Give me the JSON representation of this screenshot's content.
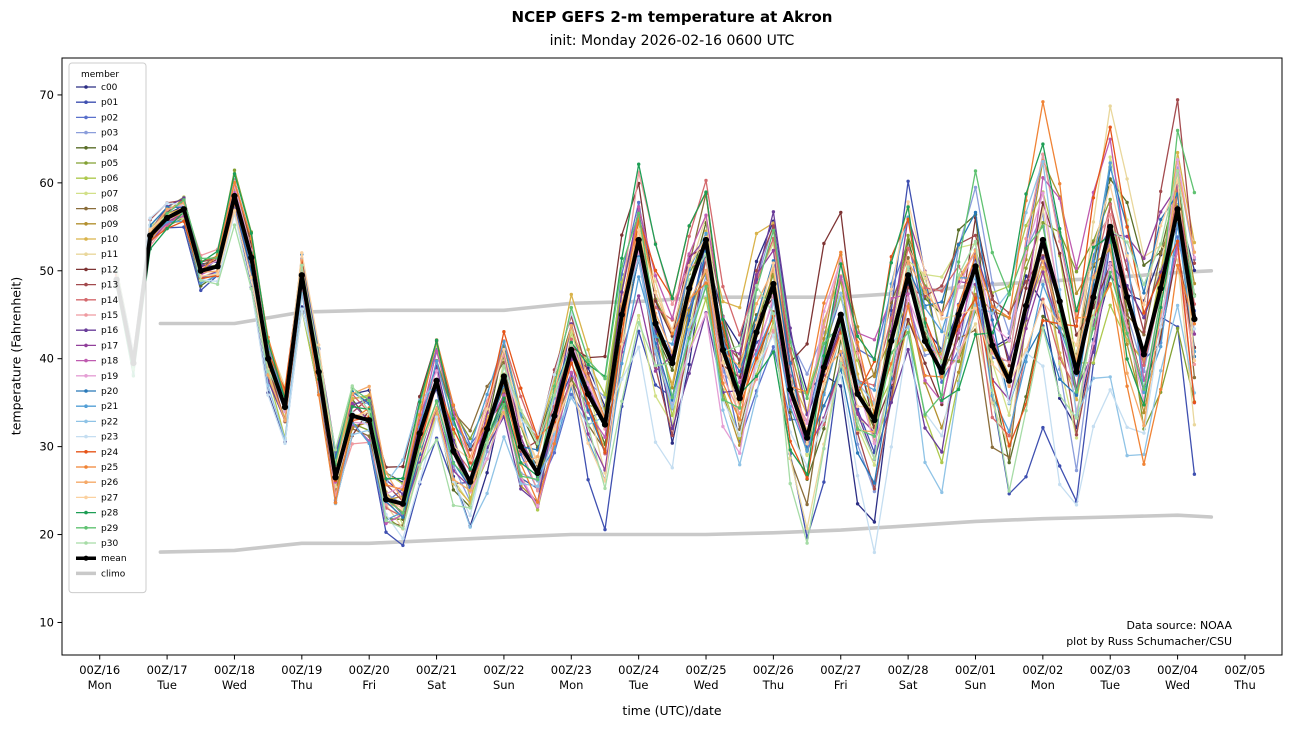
{
  "chart_data": {
    "type": "line",
    "title": "NCEP GEFS 2-m temperature at Akron",
    "subtitle": "init: Monday 2026-02-16 0600 UTC",
    "xlabel": "time (UTC)/date",
    "ylabel": "temperature (Fahrenheit)",
    "legend_title": "member",
    "legend_position": "upper left",
    "grid": false,
    "xlim": [
      15.44,
      33.55
    ],
    "ylim": [
      6.3,
      74.2
    ],
    "y_ticks": [
      10,
      20,
      30,
      40,
      50,
      60,
      70
    ],
    "x_ticks": [
      {
        "t": 16,
        "date": "00Z/16",
        "day": "Mon"
      },
      {
        "t": 17,
        "date": "00Z/17",
        "day": "Tue"
      },
      {
        "t": 18,
        "date": "00Z/18",
        "day": "Wed"
      },
      {
        "t": 19,
        "date": "00Z/19",
        "day": "Thu"
      },
      {
        "t": 20,
        "date": "00Z/20",
        "day": "Fri"
      },
      {
        "t": 21,
        "date": "00Z/21",
        "day": "Sat"
      },
      {
        "t": 22,
        "date": "00Z/22",
        "day": "Sun"
      },
      {
        "t": 23,
        "date": "00Z/23",
        "day": "Mon"
      },
      {
        "t": 24,
        "date": "00Z/24",
        "day": "Tue"
      },
      {
        "t": 25,
        "date": "00Z/25",
        "day": "Wed"
      },
      {
        "t": 26,
        "date": "00Z/26",
        "day": "Thu"
      },
      {
        "t": 27,
        "date": "00Z/27",
        "day": "Fri"
      },
      {
        "t": 28,
        "date": "00Z/28",
        "day": "Sat"
      },
      {
        "t": 29,
        "date": "00Z/01",
        "day": "Sun"
      },
      {
        "t": 30,
        "date": "00Z/02",
        "day": "Mon"
      },
      {
        "t": 31,
        "date": "00Z/03",
        "day": "Tue"
      },
      {
        "t": 32,
        "date": "00Z/04",
        "day": "Wed"
      },
      {
        "t": 33,
        "date": "00Z/05",
        "day": "Thu"
      }
    ],
    "x_start": 16.25,
    "x_step": 0.25,
    "mean": {
      "name": "mean",
      "color": "#000000",
      "values": [
        49,
        39.5,
        54,
        56,
        57,
        50,
        50.5,
        58.5,
        51.5,
        40,
        34.5,
        49.5,
        38.5,
        26.5,
        33.5,
        33,
        24,
        23.5,
        31.5,
        37.5,
        29.5,
        26,
        32,
        38,
        30,
        27,
        33.5,
        41,
        36,
        32.5,
        45,
        53.5,
        44,
        39.5,
        48,
        53.5,
        41,
        35.5,
        43,
        48.5,
        36.5,
        31,
        39,
        45,
        36,
        33,
        42,
        49.5,
        42,
        38.5,
        45,
        50.5,
        41.5,
        37.5,
        46,
        53.5,
        46.5,
        38.5,
        47,
        55,
        47,
        40.5,
        48,
        57,
        44.5
      ]
    },
    "climo": {
      "name": "climo",
      "color": "#c9c9c9",
      "upper": {
        "x": [
          16.9,
          18,
          19,
          20,
          22,
          23,
          24,
          25,
          26,
          27,
          28,
          29,
          30,
          31,
          32,
          32.5
        ],
        "y": [
          44,
          44,
          45.3,
          45.5,
          45.5,
          46.3,
          46.5,
          47,
          47,
          47,
          47.5,
          48.3,
          48.8,
          49.2,
          49.8,
          50
        ]
      },
      "lower": {
        "x": [
          16.9,
          18,
          19,
          20,
          22,
          23,
          24,
          25,
          26,
          27,
          28,
          29,
          30,
          31,
          32,
          32.5
        ],
        "y": [
          18,
          18.2,
          19,
          19,
          19.7,
          20,
          20,
          20,
          20.2,
          20.5,
          21,
          21.5,
          21.8,
          22,
          22.2,
          22
        ]
      }
    },
    "spread_model": {
      "base": 1.2,
      "rate": 0.78,
      "max": 13,
      "estimated": true
    },
    "members": [
      {
        "name": "c00",
        "color": "#2b2d84",
        "amp": 1.15,
        "bias": -2
      },
      {
        "name": "p01",
        "color": "#3e4fb0",
        "amp": 1.35,
        "bias": -5
      },
      {
        "name": "p02",
        "color": "#5a71cc",
        "amp": 1.0,
        "bias": 0
      },
      {
        "name": "p03",
        "color": "#8b9edb",
        "amp": 1.0,
        "bias": -1
      },
      {
        "name": "p04",
        "color": "#5a6e28",
        "amp": 1.0,
        "bias": 1
      },
      {
        "name": "p05",
        "color": "#82a033",
        "amp": 1.0,
        "bias": 2
      },
      {
        "name": "p06",
        "color": "#aec94e",
        "amp": 1.0,
        "bias": 0
      },
      {
        "name": "p07",
        "color": "#d2e088",
        "amp": 1.0,
        "bias": 0
      },
      {
        "name": "p08",
        "color": "#8a6d3a",
        "amp": 1.0,
        "bias": -1
      },
      {
        "name": "p09",
        "color": "#b3902f",
        "amp": 1.0,
        "bias": 1
      },
      {
        "name": "p10",
        "color": "#d9b34a",
        "amp": 1.0,
        "bias": 2
      },
      {
        "name": "p11",
        "color": "#e9d79c",
        "amp": 1.0,
        "bias": 0
      },
      {
        "name": "p12",
        "color": "#7e3434",
        "amp": 1.15,
        "bias": 3
      },
      {
        "name": "p13",
        "color": "#a34a4e",
        "amp": 1.1,
        "bias": 2
      },
      {
        "name": "p14",
        "color": "#d4696d",
        "amp": 1.0,
        "bias": 2
      },
      {
        "name": "p15",
        "color": "#ef9aa0",
        "amp": 1.1,
        "bias": 3
      },
      {
        "name": "p16",
        "color": "#6a3d9a",
        "amp": 1.0,
        "bias": -1
      },
      {
        "name": "p17",
        "color": "#91409b",
        "amp": 1.0,
        "bias": 0
      },
      {
        "name": "p18",
        "color": "#bf5bb0",
        "amp": 1.0,
        "bias": 1
      },
      {
        "name": "p19",
        "color": "#e59fd5",
        "amp": 1.0,
        "bias": 0
      },
      {
        "name": "p20",
        "color": "#2878b8",
        "amp": 1.0,
        "bias": 0
      },
      {
        "name": "p21",
        "color": "#539fd6",
        "amp": 1.0,
        "bias": -1
      },
      {
        "name": "p22",
        "color": "#8fc3e6",
        "amp": 1.25,
        "bias": -5
      },
      {
        "name": "p23",
        "color": "#c5def1",
        "amp": 1.45,
        "bias": -7
      },
      {
        "name": "p24",
        "color": "#e65418",
        "amp": 1.0,
        "bias": 1
      },
      {
        "name": "p25",
        "color": "#f08335",
        "amp": 1.0,
        "bias": 2
      },
      {
        "name": "p26",
        "color": "#f5a968",
        "amp": 1.0,
        "bias": 0
      },
      {
        "name": "p27",
        "color": "#fbd1a0",
        "amp": 1.0,
        "bias": 0
      },
      {
        "name": "p28",
        "color": "#1d9e55",
        "amp": 1.2,
        "bias": 4
      },
      {
        "name": "p29",
        "color": "#5fc271",
        "amp": 1.0,
        "bias": 1
      },
      {
        "name": "p30",
        "color": "#a6dca6",
        "amp": 1.15,
        "bias": -4
      }
    ],
    "annotations": {
      "source": "Data source: NOAA",
      "credit": "plot by Russ Schumacher/CSU"
    }
  }
}
